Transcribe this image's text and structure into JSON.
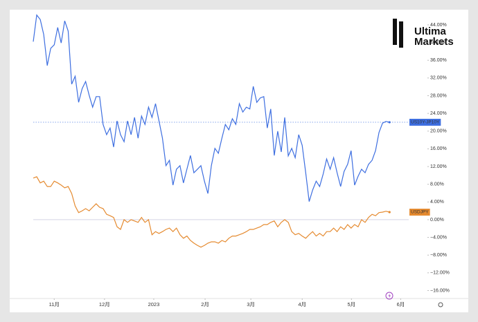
{
  "brand": {
    "line1": "Ultima",
    "line2": "Markets"
  },
  "chart_data": {
    "type": "line",
    "xlim": [
      0,
      107.5
    ],
    "xticks": [
      {
        "value": 6,
        "label": "11月"
      },
      {
        "value": 20.4,
        "label": "12月"
      },
      {
        "value": 34.5,
        "label": "2023"
      },
      {
        "value": 49.2,
        "label": "2月"
      },
      {
        "value": 62.3,
        "label": "3月"
      },
      {
        "value": 77,
        "label": "4月"
      },
      {
        "value": 91.1,
        "label": "5月"
      },
      {
        "value": 105.2,
        "label": "6月"
      }
    ],
    "ylim": [
      -17.8,
      46.8
    ],
    "yticks": [
      {
        "value": 44,
        "label": "44.00%"
      },
      {
        "value": 40,
        "label": "40.00%"
      },
      {
        "value": 36,
        "label": "36.00%"
      },
      {
        "value": 32,
        "label": "32.00%"
      },
      {
        "value": 28,
        "label": "28.00%"
      },
      {
        "value": 24,
        "label": "24.00%"
      },
      {
        "value": 20,
        "label": "20.00%"
      },
      {
        "value": 16,
        "label": "16.00%"
      },
      {
        "value": 12,
        "label": "12.00%"
      },
      {
        "value": 8,
        "label": "8.00%"
      },
      {
        "value": 4,
        "label": "4.00%"
      },
      {
        "value": 0,
        "label": "0.00%"
      },
      {
        "value": -4,
        "label": "−4.00%"
      },
      {
        "value": -8,
        "label": "−8.00%"
      },
      {
        "value": -12,
        "label": "−12.00%"
      },
      {
        "value": -16,
        "label": "−16.00%"
      }
    ],
    "series": [
      {
        "name": "US10Y-JP10Y",
        "color": "#3d6ee0",
        "values": [
          40.2,
          46.2,
          45.2,
          41.8,
          34.8,
          38.7,
          39.5,
          43.4,
          39.9,
          44.9,
          42.6,
          30.6,
          32.4,
          26.5,
          29.6,
          31.2,
          28.1,
          25.4,
          27.8,
          27.8,
          21.5,
          19.2,
          20.7,
          16.4,
          22.3,
          19.2,
          17.6,
          22.3,
          19.2,
          23.1,
          18.4,
          23.4,
          21.5,
          25.4,
          23.1,
          26.2,
          22.3,
          18.4,
          12.2,
          13.4,
          7.8,
          11.4,
          12.2,
          8.3,
          11.4,
          14.5,
          10.6,
          11.4,
          12.2,
          8.7,
          5.9,
          12.2,
          16.1,
          15.0,
          18.4,
          21.5,
          20.3,
          22.8,
          21.5,
          26.2,
          24.3,
          25.4,
          25.0,
          30.1,
          26.5,
          27.5,
          27.8,
          20.7,
          25.0,
          14.5,
          20.0,
          15.3,
          23.1,
          14.4,
          16.1,
          14.0,
          19.2,
          16.8,
          10.6,
          4.1,
          6.7,
          8.7,
          7.5,
          10.3,
          13.7,
          11.4,
          14.0,
          10.6,
          7.5,
          10.9,
          12.5,
          15.6,
          7.8,
          9.8,
          11.4,
          10.6,
          12.5,
          13.4,
          15.6,
          19.7,
          21.8,
          22.2,
          22.0
        ]
      },
      {
        "name": "USDJPY",
        "color": "#e58a2f",
        "values": [
          9.4,
          9.7,
          8.3,
          8.7,
          7.5,
          7.5,
          8.7,
          8.3,
          7.8,
          7.2,
          7.5,
          5.9,
          3.1,
          1.6,
          2.0,
          2.5,
          2.0,
          2.8,
          3.6,
          2.8,
          2.5,
          1.2,
          0.9,
          0.5,
          -1.6,
          -2.2,
          0,
          -0.6,
          0,
          -0.3,
          -0.6,
          0.5,
          -0.6,
          0,
          -3.4,
          -2.7,
          -3.1,
          -2.7,
          -2.2,
          -1.9,
          -2.7,
          -1.9,
          -3.4,
          -4.2,
          -3.7,
          -4.7,
          -5.3,
          -5.8,
          -6.2,
          -5.8,
          -5.3,
          -5.0,
          -5.0,
          -5.3,
          -4.7,
          -5.0,
          -4.2,
          -3.7,
          -3.7,
          -3.4,
          -3.1,
          -2.7,
          -2.2,
          -2.2,
          -1.9,
          -1.6,
          -1.1,
          -1.1,
          -0.6,
          -0.3,
          -1.6,
          -0.6,
          0,
          -0.6,
          -2.7,
          -3.4,
          -3.1,
          -3.7,
          -4.2,
          -3.4,
          -2.7,
          -3.7,
          -3.1,
          -3.7,
          -2.7,
          -2.7,
          -1.9,
          -2.7,
          -1.6,
          -2.2,
          -1.1,
          -1.9,
          -1.1,
          -1.6,
          0,
          -0.6,
          0.5,
          1.2,
          0.9,
          1.6,
          1.7,
          1.9,
          1.7
        ]
      }
    ]
  }
}
